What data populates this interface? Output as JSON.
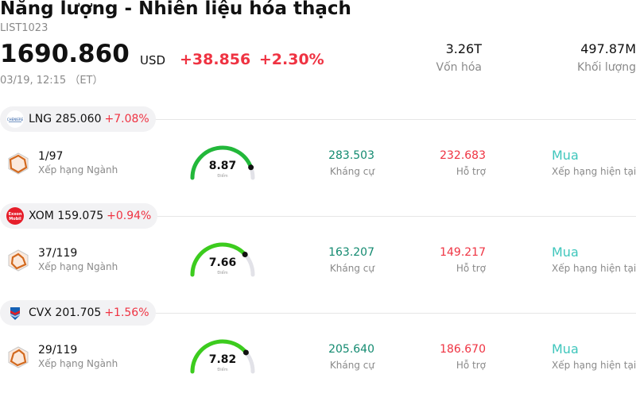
{
  "header": {
    "title": "Năng lượng - Nhiên liệu hóa thạch",
    "code": "LIST1023",
    "price": "1690.860",
    "currency": "USD",
    "change": "+38.856",
    "change_pct": "+2.30%",
    "time": "03/19, 12:15 （ET）",
    "market_cap_value": "3.26T",
    "market_cap_label": "Vốn hóa",
    "volume_value": "497.87M",
    "volume_label": "Khối lượng"
  },
  "colors": {
    "up": "#ef3342",
    "resistance": "#138a70",
    "rating": "#3fc6bc",
    "gauge": "#33c13a"
  },
  "stocks": [
    {
      "ticker": "LNG",
      "price": "285.060",
      "change_pct": "+7.08%",
      "logo_icon": "cheniere-logo-icon",
      "rank": "1/97",
      "rank_label": "Xếp hạng Ngành",
      "score": "8.87",
      "score_value": 8.87,
      "score_label": "Điểm",
      "resistance": "283.503",
      "resistance_label": "Kháng cự",
      "support": "232.683",
      "support_label": "Hỗ trợ",
      "rating": "Mua",
      "rating_label": "Xếp hạng hiện tại"
    },
    {
      "ticker": "XOM",
      "price": "159.075",
      "change_pct": "+0.94%",
      "logo_icon": "exxonmobil-logo-icon",
      "logo_text_1": "Exxon",
      "logo_text_2": "Mobil",
      "rank": "37/119",
      "rank_label": "Xếp hạng Ngành",
      "score": "7.66",
      "score_value": 7.66,
      "score_label": "Điểm",
      "resistance": "163.207",
      "resistance_label": "Kháng cự",
      "support": "149.217",
      "support_label": "Hỗ trợ",
      "rating": "Mua",
      "rating_label": "Xếp hạng hiện tại"
    },
    {
      "ticker": "CVX",
      "price": "201.705",
      "change_pct": "+1.56%",
      "logo_icon": "chevron-logo-icon",
      "rank": "29/119",
      "rank_label": "Xếp hạng Ngành",
      "score": "7.82",
      "score_value": 7.82,
      "score_label": "Điểm",
      "resistance": "205.640",
      "resistance_label": "Kháng cự",
      "support": "186.670",
      "support_label": "Hỗ trợ",
      "rating": "Mua",
      "rating_label": "Xếp hạng hiện tại"
    }
  ]
}
